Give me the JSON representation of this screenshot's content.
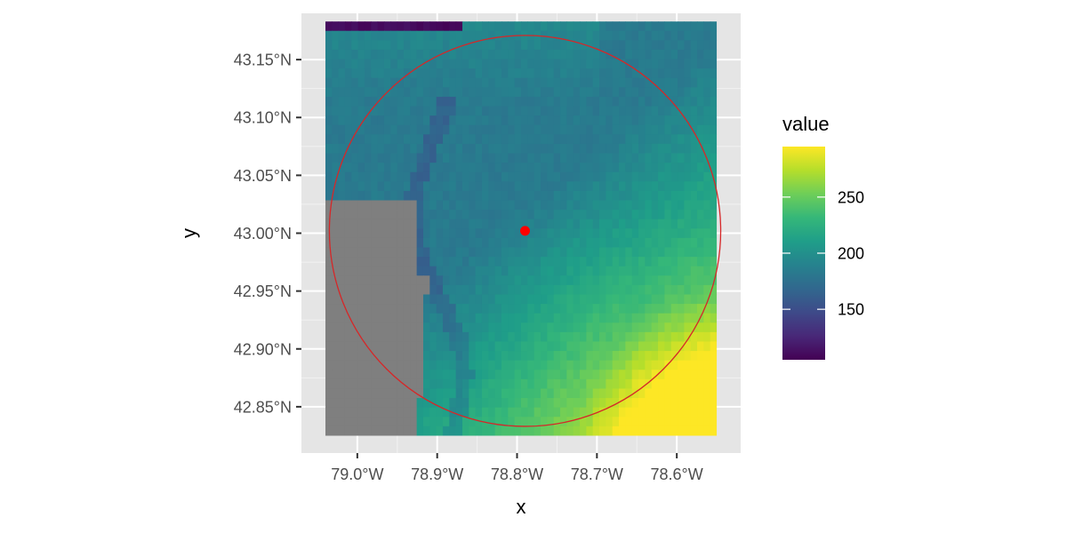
{
  "chart_data": {
    "type": "heatmap",
    "title": "",
    "xlabel": "x",
    "ylabel": "y",
    "xlim": [
      -79.07,
      -78.52
    ],
    "ylim": [
      42.81,
      43.19
    ],
    "raster_extent": {
      "xmin": -79.04,
      "xmax": -78.55,
      "ymin": 42.825,
      "ymax": 43.183
    },
    "x_ticks": [
      {
        "value": -79.0,
        "label": "79.0°W"
      },
      {
        "value": -78.9,
        "label": "78.9°W"
      },
      {
        "value": -78.8,
        "label": "78.8°W"
      },
      {
        "value": -78.7,
        "label": "78.7°W"
      },
      {
        "value": -78.6,
        "label": "78.6°W"
      }
    ],
    "y_ticks": [
      {
        "value": 43.15,
        "label": "43.15°N"
      },
      {
        "value": 43.1,
        "label": "43.10°N"
      },
      {
        "value": 43.05,
        "label": "43.05°N"
      },
      {
        "value": 43.0,
        "label": "43.00°N"
      },
      {
        "value": 42.95,
        "label": "42.95°N"
      },
      {
        "value": 42.9,
        "label": "42.90°N"
      },
      {
        "value": 42.85,
        "label": "42.85°N"
      }
    ],
    "legend": {
      "title": "value",
      "position": "right",
      "min": 105,
      "max": 295,
      "breaks": [
        {
          "value": 150,
          "label": "150"
        },
        {
          "value": 200,
          "label": "200"
        },
        {
          "value": 250,
          "label": "250"
        }
      ],
      "palette": [
        "#440154",
        "#482878",
        "#3e4a89",
        "#31688e",
        "#26828e",
        "#1f9e89",
        "#35b779",
        "#6ece58",
        "#b5de2b",
        "#fde725"
      ]
    },
    "point": {
      "x": -78.79,
      "y": 43.002,
      "color": "#ff0000"
    },
    "circle": {
      "center_x": -78.79,
      "center_y": 43.002,
      "radius_deg": 0.245,
      "color": "#d62728"
    },
    "na_color": "#7f7f7f",
    "grid": true,
    "panel_background": "#e5e5e5"
  }
}
